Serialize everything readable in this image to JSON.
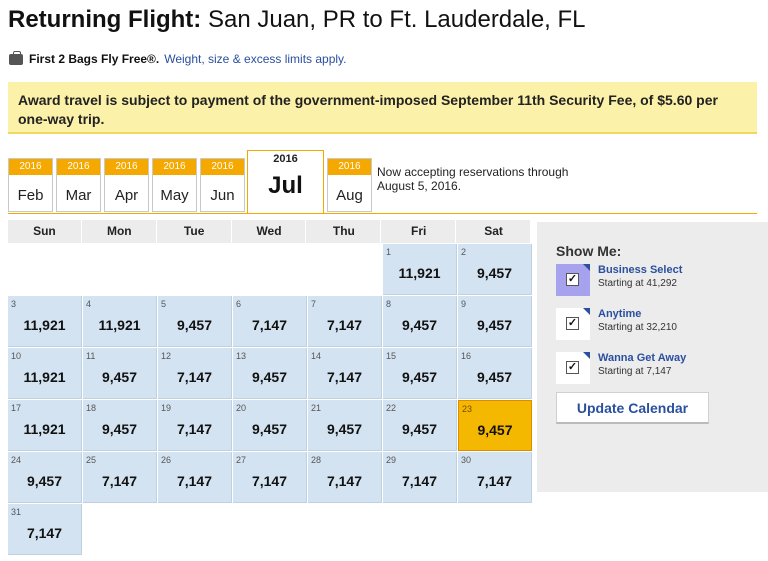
{
  "header": {
    "title_strong": "Returning Flight:",
    "title_route": "San Juan, PR to Ft. Lauderdale, FL"
  },
  "bags": {
    "icon": "suitcase-icon",
    "strong": "First 2 Bags Fly Free®.",
    "link": "Weight, size & excess limits apply."
  },
  "notice": {
    "text": "Award travel is subject to payment of the government-imposed September 11th Security Fee, of $5.60 per one-way trip."
  },
  "months": [
    {
      "year": "2016",
      "label": "Feb",
      "active": false
    },
    {
      "year": "2016",
      "label": "Mar",
      "active": false
    },
    {
      "year": "2016",
      "label": "Apr",
      "active": false
    },
    {
      "year": "2016",
      "label": "May",
      "active": false
    },
    {
      "year": "2016",
      "label": "Jun",
      "active": false
    },
    {
      "year": "2016",
      "label": "Jul",
      "active": true
    },
    {
      "year": "2016",
      "label": "Aug",
      "active": false
    }
  ],
  "accept_text": "Now accepting reservations through August 5, 2016.",
  "calendar": {
    "days_of_week": [
      "Sun",
      "Mon",
      "Tue",
      "Wed",
      "Thu",
      "Fri",
      "Sat"
    ],
    "leading_blanks": 5,
    "selected_day": "23",
    "days": [
      {
        "day": "1",
        "points": "11,921"
      },
      {
        "day": "2",
        "points": "9,457"
      },
      {
        "day": "3",
        "points": "11,921"
      },
      {
        "day": "4",
        "points": "11,921"
      },
      {
        "day": "5",
        "points": "9,457"
      },
      {
        "day": "6",
        "points": "7,147"
      },
      {
        "day": "7",
        "points": "7,147"
      },
      {
        "day": "8",
        "points": "9,457"
      },
      {
        "day": "9",
        "points": "9,457"
      },
      {
        "day": "10",
        "points": "11,921"
      },
      {
        "day": "11",
        "points": "9,457"
      },
      {
        "day": "12",
        "points": "7,147"
      },
      {
        "day": "13",
        "points": "9,457"
      },
      {
        "day": "14",
        "points": "7,147"
      },
      {
        "day": "15",
        "points": "9,457"
      },
      {
        "day": "16",
        "points": "9,457"
      },
      {
        "day": "17",
        "points": "11,921"
      },
      {
        "day": "18",
        "points": "9,457"
      },
      {
        "day": "19",
        "points": "7,147"
      },
      {
        "day": "20",
        "points": "9,457"
      },
      {
        "day": "21",
        "points": "9,457"
      },
      {
        "day": "22",
        "points": "9,457"
      },
      {
        "day": "23",
        "points": "9,457"
      },
      {
        "day": "24",
        "points": "9,457"
      },
      {
        "day": "25",
        "points": "7,147"
      },
      {
        "day": "26",
        "points": "7,147"
      },
      {
        "day": "27",
        "points": "7,147"
      },
      {
        "day": "28",
        "points": "7,147"
      },
      {
        "day": "29",
        "points": "7,147"
      },
      {
        "day": "30",
        "points": "7,147"
      },
      {
        "day": "31",
        "points": "7,147"
      }
    ]
  },
  "show_me": {
    "title": "Show Me:",
    "options": [
      {
        "name": "Business Select",
        "sub": "Starting at 41,292",
        "checked": true,
        "highlight": true
      },
      {
        "name": "Anytime",
        "sub": "Starting at 32,210",
        "checked": true,
        "highlight": false
      },
      {
        "name": "Wanna Get Away",
        "sub": "Starting at 7,147",
        "checked": true,
        "highlight": false
      }
    ],
    "update_label": "Update Calendar"
  },
  "colors": {
    "accent_orange": "#f5a800",
    "cell_blue": "#d4e3f1",
    "link_blue": "#2a4f9e",
    "notice_yellow": "#fbf1a8"
  }
}
